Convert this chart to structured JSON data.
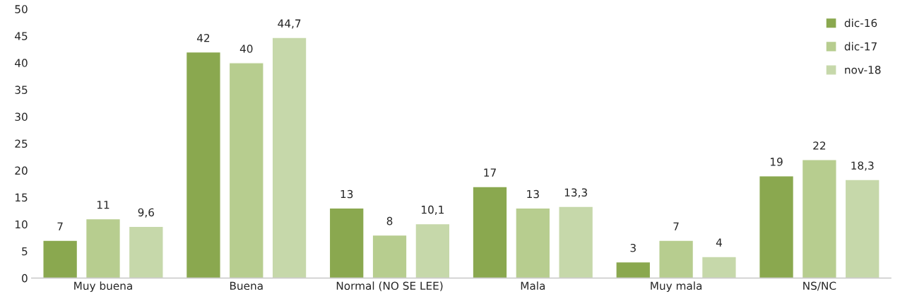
{
  "chart_data": {
    "type": "bar",
    "categories": [
      "Muy buena",
      "Buena",
      "Normal (NO SE LEE)",
      "Mala",
      "Muy mala",
      "NS/NC"
    ],
    "series": [
      {
        "name": "dic-16",
        "color": "#8aa84f",
        "values": [
          7,
          42,
          13,
          17,
          3,
          19
        ],
        "value_labels": [
          "7",
          "42",
          "13",
          "17",
          "3",
          "19"
        ]
      },
      {
        "name": "dic-17",
        "color": "#b7cd8f",
        "values": [
          11,
          40,
          8,
          13,
          7,
          22
        ],
        "value_labels": [
          "11",
          "40",
          "8",
          "13",
          "7",
          "22"
        ]
      },
      {
        "name": "nov-18",
        "color": "#c6d8aa",
        "values": [
          9.6,
          44.7,
          10.1,
          13.3,
          4,
          18.3
        ],
        "value_labels": [
          "9,6",
          "44,7",
          "10,1",
          "13,3",
          "4",
          "18,3"
        ]
      }
    ],
    "ylim": [
      0,
      50
    ],
    "yticks": [
      0,
      5,
      10,
      15,
      20,
      25,
      30,
      35,
      40,
      45,
      50
    ],
    "grid": false,
    "legend": "top right"
  }
}
